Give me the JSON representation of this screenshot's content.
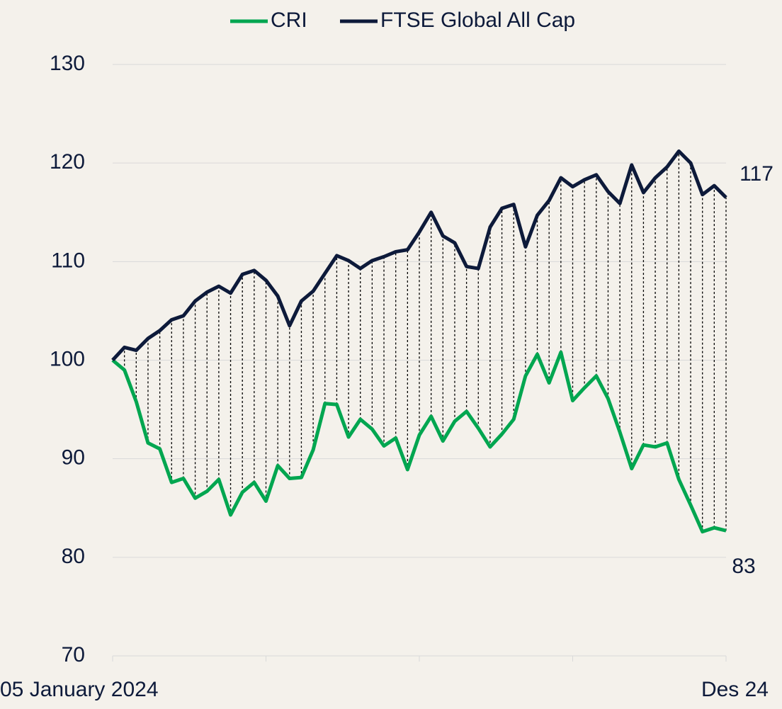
{
  "chart_data": {
    "type": "line",
    "categories": [
      "05 January 2024",
      null,
      null,
      null,
      null,
      null,
      null,
      null,
      null,
      null,
      null,
      null,
      null,
      null,
      null,
      null,
      null,
      null,
      null,
      null,
      null,
      null,
      null,
      null,
      null,
      null,
      null,
      null,
      null,
      null,
      null,
      null,
      null,
      null,
      null,
      null,
      null,
      null,
      null,
      null,
      null,
      null,
      null,
      null,
      null,
      null,
      null,
      null,
      null,
      null,
      null,
      null,
      "Des 24"
    ],
    "series": [
      {
        "name": "CRI",
        "color": "#00a650",
        "values": [
          100,
          99,
          95.8,
          91.6,
          91,
          87.6,
          88,
          86,
          86.7,
          87.9,
          84.3,
          86.6,
          87.6,
          85.7,
          89.3,
          88,
          88.1,
          90.9,
          95.6,
          95.5,
          92.2,
          94,
          93,
          91.3,
          92.1,
          88.9,
          92.4,
          94.3,
          91.8,
          93.8,
          94.8,
          93.1,
          91.2,
          92.5,
          94,
          98.4,
          100.6,
          97.7,
          100.8,
          95.9,
          97.2,
          98.4,
          96.1,
          92.7,
          89,
          91.4,
          91.2,
          91.6,
          87.9,
          85.3,
          82.6,
          83,
          82.7
        ],
        "value_labels": [
          null,
          null,
          null,
          null,
          null,
          null,
          null,
          null,
          null,
          null,
          null,
          null,
          null,
          null,
          null,
          null,
          null,
          null,
          null,
          null,
          null,
          null,
          null,
          null,
          null,
          null,
          null,
          null,
          null,
          null,
          null,
          null,
          null,
          null,
          null,
          null,
          null,
          null,
          null,
          null,
          null,
          null,
          null,
          null,
          null,
          null,
          null,
          null,
          null,
          null,
          null,
          null,
          "83"
        ]
      },
      {
        "name": "FTSE Global All Cap",
        "color": "#0d1a3a",
        "values": [
          100,
          101.3,
          101,
          102.2,
          103,
          104.1,
          104.5,
          106,
          106.9,
          107.5,
          106.8,
          108.7,
          109.1,
          108.1,
          106.5,
          103.5,
          106,
          107,
          108.8,
          110.6,
          110.1,
          109.3,
          110.1,
          110.5,
          111,
          111.2,
          113,
          115,
          112.6,
          111.9,
          109.5,
          109.3,
          113.5,
          115.4,
          115.8,
          111.5,
          114.7,
          116.2,
          118.5,
          117.6,
          118.3,
          118.8,
          117.1,
          115.9,
          119.8,
          117,
          118.5,
          119.6,
          121.2,
          120,
          116.8,
          117.7,
          116.5
        ],
        "value_labels": [
          null,
          null,
          null,
          null,
          null,
          null,
          null,
          null,
          null,
          null,
          null,
          null,
          null,
          null,
          null,
          null,
          null,
          null,
          null,
          null,
          null,
          null,
          null,
          null,
          null,
          null,
          null,
          null,
          null,
          null,
          null,
          null,
          null,
          null,
          null,
          null,
          null,
          null,
          null,
          null,
          null,
          null,
          null,
          null,
          null,
          null,
          null,
          null,
          null,
          null,
          null,
          null,
          "117"
        ]
      }
    ],
    "ylim": [
      70,
      130
    ],
    "yticks": [
      70,
      80,
      90,
      100,
      110,
      120,
      130
    ],
    "grid": true,
    "hilo_lines": true,
    "legend": "top"
  }
}
